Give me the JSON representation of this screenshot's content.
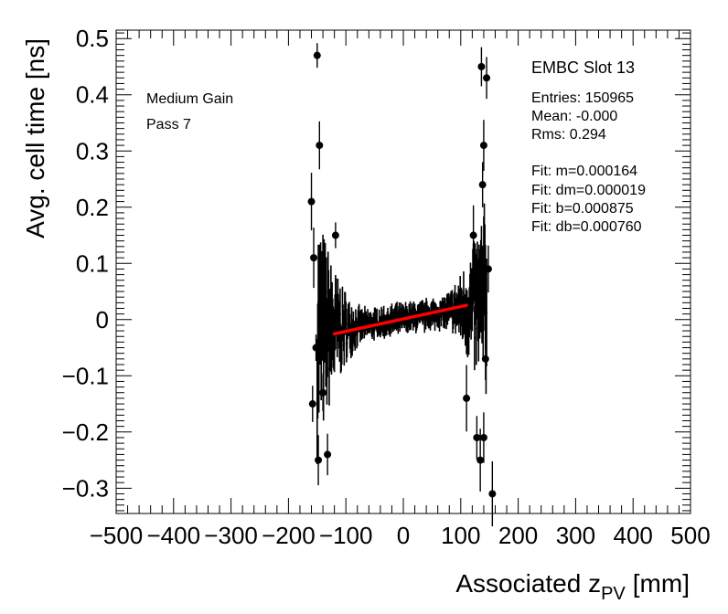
{
  "chart_data": {
    "type": "scatter",
    "title": "EMBC Slot 13",
    "xlabel_main": "Associated z",
    "xlabel_sub": "PV",
    "xlabel_unit": "[mm]",
    "ylabel": "Avg. cell time [ns]",
    "xlim": [
      -500,
      500
    ],
    "ylim": [
      -0.345,
      0.515
    ],
    "x_ticks": [
      -500,
      -400,
      -300,
      -200,
      -100,
      0,
      100,
      200,
      300,
      400,
      500
    ],
    "x_tick_labels": [
      "−500",
      "−400",
      "−300",
      "−200",
      "−100",
      "0",
      "100",
      "200",
      "300",
      "400",
      "500"
    ],
    "y_ticks": [
      -0.3,
      -0.2,
      -0.1,
      0,
      0.1,
      0.2,
      0.3,
      0.4,
      0.5
    ],
    "y_tick_labels": [
      "−0.3",
      "−0.2",
      "−0.1",
      "0",
      "0.1",
      "0.2",
      "0.3",
      "0.4",
      "0.5"
    ],
    "left_annotations": [
      "Medium Gain",
      "Pass 7"
    ],
    "stats": [
      "Entries: 150965",
      "Mean: -0.000",
      "Rms: 0.294"
    ],
    "fit": [
      "Fit: m=0.000164",
      "Fit: dm=0.000019",
      "Fit: b=0.000875",
      "Fit: db=0.000760"
    ],
    "fit_line": {
      "m": 0.000164,
      "b": 0.000875,
      "x_range": [
        -120,
        110
      ],
      "color": "#ff0000"
    },
    "marker_color": "#000000",
    "outliers": [
      {
        "x": -150,
        "y": 0.47
      },
      {
        "x": -146,
        "y": 0.31
      },
      {
        "x": -160,
        "y": 0.21
      },
      {
        "x": -156,
        "y": 0.11
      },
      {
        "x": -152,
        "y": -0.05
      },
      {
        "x": -158,
        "y": -0.15
      },
      {
        "x": -148,
        "y": -0.25
      },
      {
        "x": -132,
        "y": -0.24
      },
      {
        "x": -140,
        "y": -0.13
      },
      {
        "x": -142,
        "y": 0.09
      },
      {
        "x": -118,
        "y": 0.15
      },
      {
        "x": 136,
        "y": 0.45
      },
      {
        "x": 145,
        "y": 0.43
      },
      {
        "x": 140,
        "y": 0.31
      },
      {
        "x": 138,
        "y": 0.24
      },
      {
        "x": 148,
        "y": 0.09
      },
      {
        "x": 143,
        "y": -0.07
      },
      {
        "x": 140,
        "y": -0.21
      },
      {
        "x": 134,
        "y": -0.25
      },
      {
        "x": 155,
        "y": -0.31
      },
      {
        "x": 128,
        "y": -0.21
      },
      {
        "x": 122,
        "y": 0.15
      },
      {
        "x": 110,
        "y": -0.14
      }
    ]
  }
}
